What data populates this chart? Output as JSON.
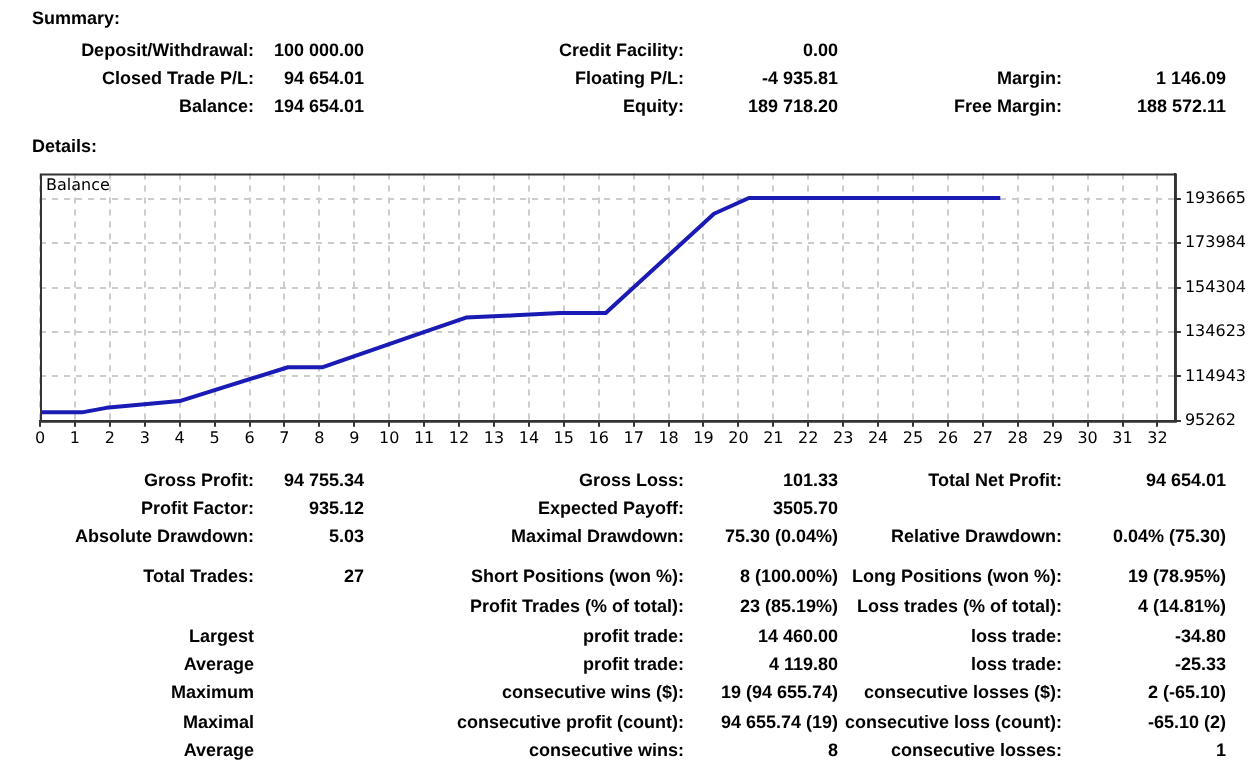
{
  "chart_data": {
    "type": "line",
    "title": "Balance",
    "color": "#1a1ab4",
    "grid": true,
    "x": [
      0,
      1.2,
      1.9,
      4,
      7.1,
      8.1,
      10.7,
      12.2,
      13.6,
      14.9,
      16.2,
      19.3,
      20.3,
      27.5
    ],
    "values": [
      99000,
      99000,
      101000,
      104000,
      119000,
      119000,
      133000,
      141000,
      142000,
      143000,
      143000,
      187000,
      194000,
      194000
    ],
    "xlim": [
      0,
      32.5
    ],
    "xticks": [
      0,
      1,
      2,
      3,
      4,
      5,
      6,
      7,
      8,
      9,
      10,
      11,
      12,
      13,
      14,
      15,
      16,
      17,
      18,
      19,
      20,
      21,
      22,
      23,
      24,
      25,
      26,
      27,
      28,
      29,
      30,
      31,
      32
    ],
    "ylim": [
      95262,
      204800
    ],
    "yticks": [
      95262,
      114943,
      134623,
      154304,
      173984,
      193665
    ],
    "annotations": [
      "Summary:",
      "Deposit/Withdrawal:",
      "100 000.00",
      "Credit Facility:",
      "0.00",
      "Closed Trade P/L:",
      "94 654.01",
      "Floating P/L:",
      "-4 935.81",
      "Margin:",
      "1 146.09",
      "Balance:",
      "194 654.01",
      "Equity:",
      "189 718.20",
      "Free Margin:",
      "188 572.11",
      "Details:",
      "Gross Profit:",
      "94 755.34",
      "Gross Loss:",
      "101.33",
      "Total Net Profit:",
      "94 654.01",
      "Profit Factor:",
      "935.12",
      "Expected Payoff:",
      "3505.70",
      "Absolute Drawdown:",
      "5.03",
      "Maximal Drawdown:",
      "75.30 (0.04%)",
      "Relative Drawdown:",
      "0.04% (75.30)",
      "Total Trades:",
      "27",
      "Short Positions (won %):",
      "8 (100.00%)",
      "Long Positions (won %):",
      "19 (78.95%)",
      "Profit Trades (% of total):",
      "23 (85.19%)",
      "Loss trades (% of total):",
      "4 (14.81%)",
      "Largest",
      "profit trade:",
      "14 460.00",
      "loss trade:",
      "-34.80",
      "Average",
      "profit trade:",
      "4 119.80",
      "loss trade:",
      "-25.33",
      "Maximum",
      "consecutive wins ($):",
      "19 (94 655.74)",
      "consecutive losses ($):",
      "2 (-65.10)",
      "Maximal",
      "consecutive profit (count):",
      "94 655.74 (19)",
      "consecutive loss (count):",
      "-65.10 (2)",
      "Average",
      "consecutive wins:",
      "8",
      "consecutive losses:",
      "1"
    ]
  }
}
